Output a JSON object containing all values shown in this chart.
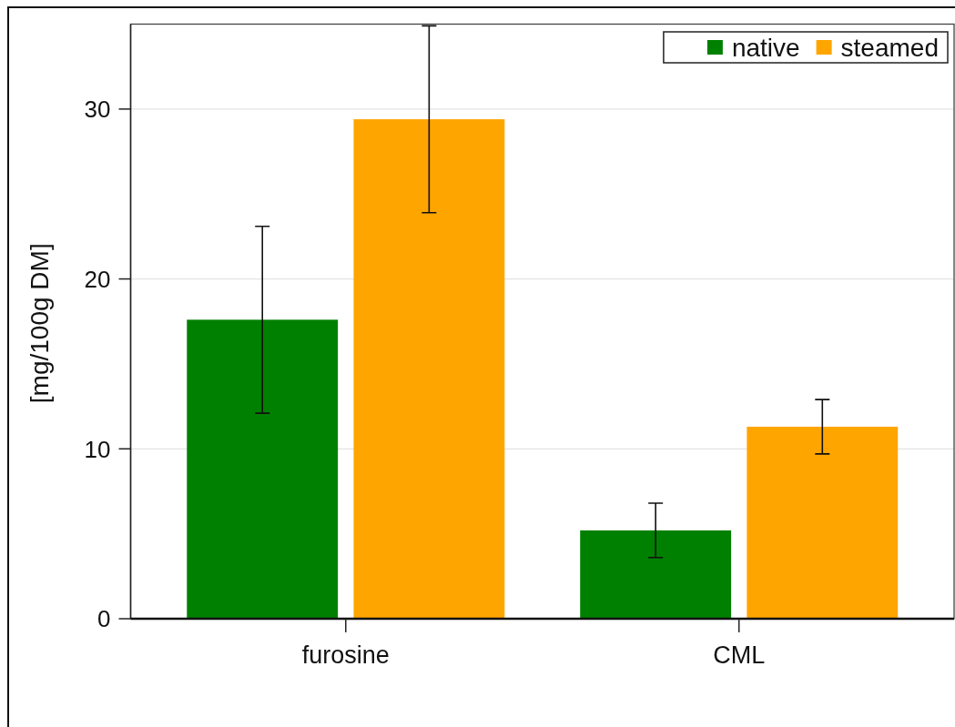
{
  "chart_data": {
    "type": "bar",
    "ylabel": "[mg/100g DM]",
    "categories": [
      "furosine",
      "CML"
    ],
    "series": [
      {
        "name": "native",
        "color": "#008000",
        "values": [
          17.6,
          5.2
        ],
        "errors": [
          5.5,
          1.6
        ]
      },
      {
        "name": "steamed",
        "color": "#ffa500",
        "values": [
          29.4,
          11.3
        ],
        "errors": [
          5.5,
          1.6
        ]
      }
    ],
    "ylim": [
      0,
      35
    ],
    "yticks": [
      0,
      10,
      20,
      30
    ],
    "grid": "y",
    "legend": "top right"
  }
}
